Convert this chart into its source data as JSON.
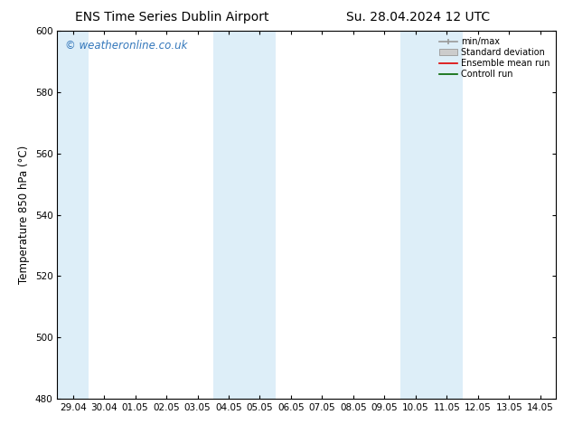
{
  "title": "ENS Time Series Dublin Airport",
  "title2": "Su. 28.04.2024 12 UTC",
  "ylabel": "Temperature 850 hPa (°C)",
  "bg_color": "#ffffff",
  "plot_bg_color": "#ffffff",
  "ylim": [
    480,
    600
  ],
  "yticks": [
    480,
    500,
    520,
    540,
    560,
    580,
    600
  ],
  "xtick_labels": [
    "29.04",
    "30.04",
    "01.05",
    "02.05",
    "03.05",
    "04.05",
    "05.05",
    "06.05",
    "07.05",
    "08.05",
    "09.05",
    "10.05",
    "11.05",
    "12.05",
    "13.05",
    "14.05"
  ],
  "watermark": "© weatheronline.co.uk",
  "watermark_color": "#3377bb",
  "shaded_band_color": "#ddeef8",
  "shaded_columns": [
    0,
    5,
    6,
    11,
    12
  ],
  "legend_labels": [
    "min/max",
    "Standard deviation",
    "Ensemble mean run",
    "Controll run"
  ],
  "legend_colors_line": [
    "#999999",
    "#cccccc",
    "#dd0000",
    "#006600"
  ],
  "title_fontsize": 10,
  "tick_fontsize": 7.5,
  "ylabel_fontsize": 8.5,
  "watermark_fontsize": 8.5
}
